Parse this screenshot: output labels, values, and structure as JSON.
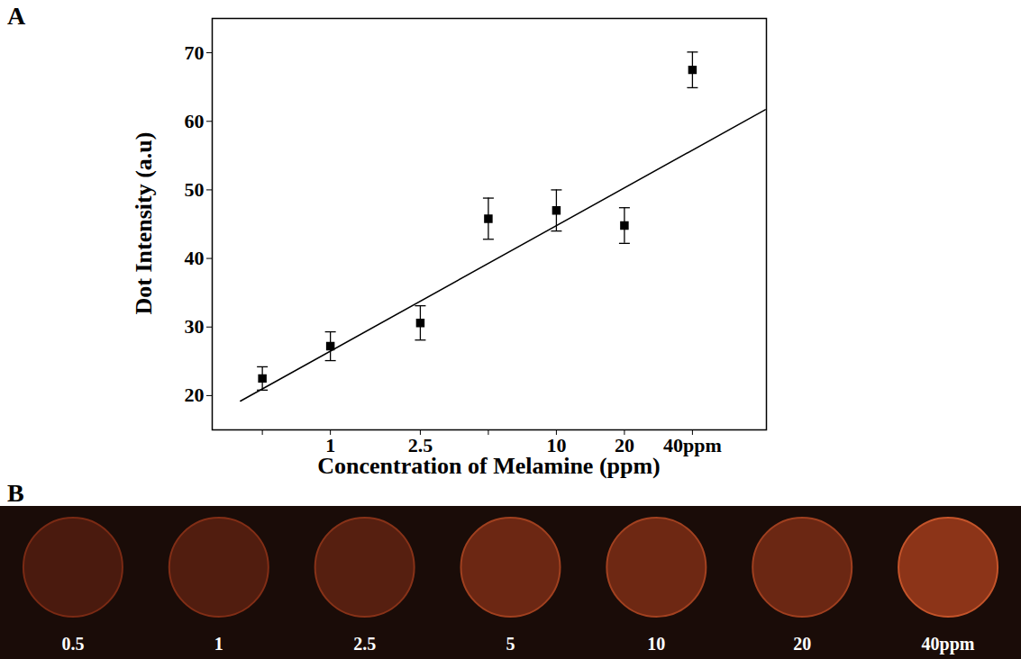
{
  "chart_data": {
    "type": "scatter",
    "panel_label": "A",
    "x_label": "Concentration of Melamine (ppm)",
    "y_label": "Dot Intensity (a.u)",
    "log": "x",
    "grid": false,
    "xlim": [
      0.3,
      85
    ],
    "xticks": [
      0.5,
      1,
      2.5,
      5,
      10,
      20,
      {
        "value": 40,
        "label": "40ppm"
      }
    ],
    "ylim": [
      15,
      75
    ],
    "yticks": [
      20,
      30,
      40,
      50,
      60,
      70
    ],
    "x": [
      0.5,
      1,
      2.5,
      5,
      10,
      20,
      40
    ],
    "series": [
      {
        "type": "scatter",
        "marker": "square",
        "color": "#000000",
        "values": [
          22.5,
          27.2,
          30.6,
          45.8,
          47.0,
          44.8,
          67.5
        ],
        "error": [
          1.7,
          2.1,
          2.5,
          3.0,
          3.0,
          2.6,
          2.6
        ]
      },
      {
        "type": "line",
        "line_style": "solid",
        "color": "#000000",
        "x": [
          0.4,
          84
        ],
        "values": [
          19.2,
          61.7
        ]
      }
    ]
  },
  "image_panel": {
    "panel_label": "B",
    "labels": [
      "0.5",
      "1",
      "2.5",
      "5",
      "10",
      "20",
      "40ppm"
    ]
  }
}
